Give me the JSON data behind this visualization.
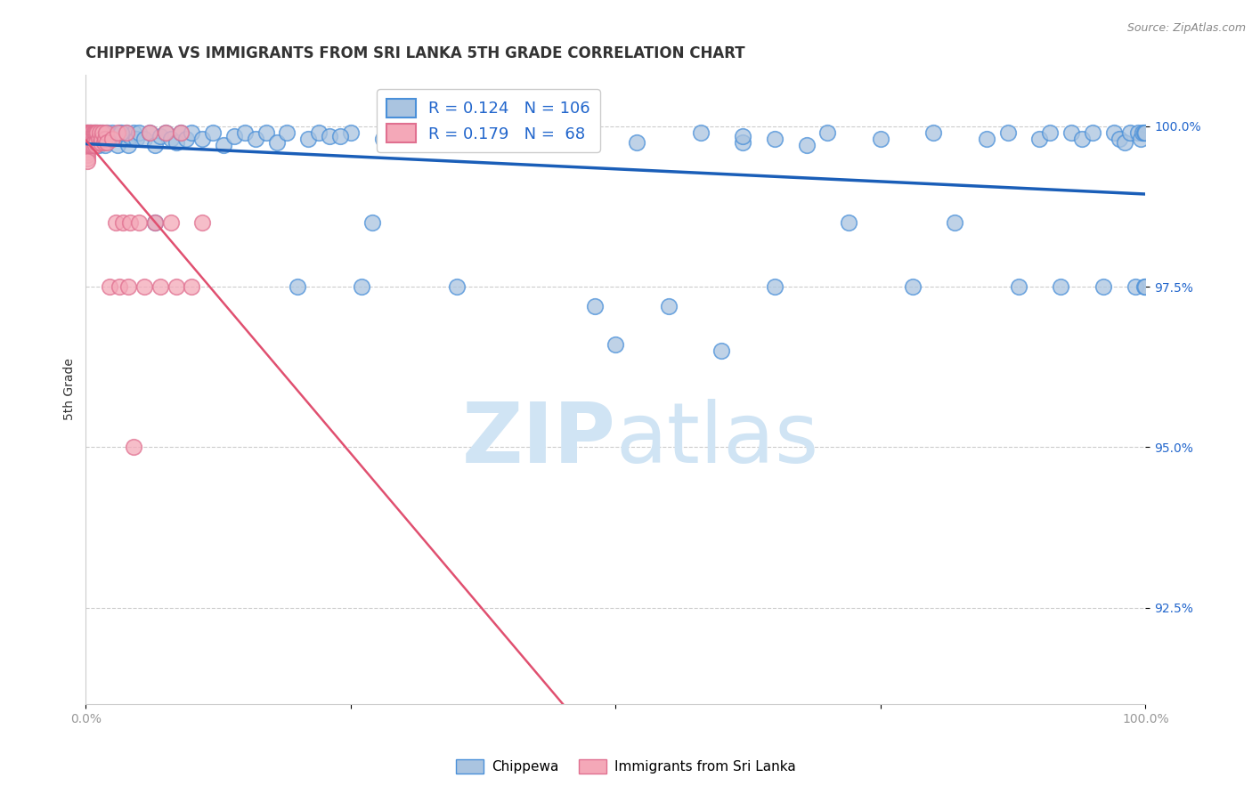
{
  "title": "CHIPPEWA VS IMMIGRANTS FROM SRI LANKA 5TH GRADE CORRELATION CHART",
  "source_text": "Source: ZipAtlas.com",
  "ylabel": "5th Grade",
  "xlim": [
    0.0,
    1.0
  ],
  "ylim": [
    0.91,
    1.008
  ],
  "yticks": [
    0.925,
    0.95,
    0.975,
    1.0
  ],
  "ytick_labels": [
    "92.5%",
    "95.0%",
    "97.5%",
    "100.0%"
  ],
  "blue_color": "#aac4e0",
  "blue_edge_color": "#4a90d9",
  "pink_color": "#f4a8b8",
  "pink_edge_color": "#e07090",
  "blue_line_color": "#1a5eb8",
  "pink_line_color": "#e05070",
  "watermark_color": "#d0e4f4",
  "grid_color": "#cccccc",
  "background_color": "#ffffff",
  "title_color": "#333333",
  "ytick_color": "#2266cc",
  "xtick_color": "#999999",
  "source_color": "#888888",
  "ylabel_color": "#333333",
  "title_fontsize": 12,
  "tick_fontsize": 10,
  "ylabel_fontsize": 10,
  "blue_scatter_x": [
    0.001,
    0.002,
    0.003,
    0.003,
    0.004,
    0.004,
    0.005,
    0.005,
    0.006,
    0.007,
    0.008,
    0.009,
    0.01,
    0.011,
    0.012,
    0.013,
    0.015,
    0.016,
    0.018,
    0.02,
    0.022,
    0.025,
    0.028,
    0.03,
    0.032,
    0.035,
    0.038,
    0.04,
    0.042,
    0.045,
    0.048,
    0.05,
    0.055,
    0.06,
    0.065,
    0.07,
    0.075,
    0.08,
    0.085,
    0.09,
    0.095,
    0.1,
    0.11,
    0.12,
    0.13,
    0.14,
    0.15,
    0.16,
    0.17,
    0.18,
    0.19,
    0.2,
    0.21,
    0.22,
    0.23,
    0.25,
    0.27,
    0.28,
    0.3,
    0.32,
    0.35,
    0.38,
    0.4,
    0.42,
    0.45,
    0.48,
    0.5,
    0.52,
    0.55,
    0.58,
    0.6,
    0.62,
    0.65,
    0.68,
    0.7,
    0.72,
    0.75,
    0.78,
    0.8,
    0.82,
    0.85,
    0.87,
    0.88,
    0.9,
    0.91,
    0.92,
    0.93,
    0.94,
    0.95,
    0.96,
    0.97,
    0.975,
    0.98,
    0.985,
    0.99,
    0.993,
    0.995,
    0.997,
    0.999,
    0.999,
    1.0,
    1.0,
    0.033,
    0.065,
    0.24,
    0.26,
    0.62,
    0.65
  ],
  "blue_scatter_y": [
    0.999,
    0.998,
    0.9985,
    0.997,
    0.999,
    0.998,
    0.999,
    0.9975,
    0.998,
    0.999,
    0.997,
    0.999,
    0.998,
    0.999,
    0.997,
    0.999,
    0.998,
    0.999,
    0.997,
    0.999,
    0.998,
    0.999,
    0.9985,
    0.997,
    0.999,
    0.998,
    0.999,
    0.997,
    0.9985,
    0.999,
    0.998,
    0.999,
    0.998,
    0.999,
    0.997,
    0.9985,
    0.999,
    0.998,
    0.9975,
    0.999,
    0.998,
    0.999,
    0.998,
    0.999,
    0.997,
    0.9985,
    0.999,
    0.998,
    0.999,
    0.9975,
    0.999,
    0.975,
    0.998,
    0.999,
    0.9985,
    0.999,
    0.985,
    0.998,
    0.999,
    0.9975,
    0.975,
    0.999,
    0.998,
    0.9975,
    0.999,
    0.972,
    0.966,
    0.9975,
    0.972,
    0.999,
    0.965,
    0.9975,
    0.998,
    0.997,
    0.999,
    0.985,
    0.998,
    0.975,
    0.999,
    0.985,
    0.998,
    0.999,
    0.975,
    0.998,
    0.999,
    0.975,
    0.999,
    0.998,
    0.999,
    0.975,
    0.999,
    0.998,
    0.9975,
    0.999,
    0.975,
    0.999,
    0.998,
    0.999,
    0.975,
    0.999,
    0.999,
    0.975,
    0.999,
    0.985,
    0.9985,
    0.975,
    0.9985,
    0.975
  ],
  "pink_scatter_x": [
    0.0005,
    0.001,
    0.001,
    0.001,
    0.001,
    0.001,
    0.001,
    0.001,
    0.001,
    0.001,
    0.001,
    0.0015,
    0.002,
    0.002,
    0.002,
    0.002,
    0.002,
    0.003,
    0.003,
    0.003,
    0.003,
    0.004,
    0.004,
    0.004,
    0.005,
    0.005,
    0.005,
    0.006,
    0.006,
    0.007,
    0.007,
    0.008,
    0.008,
    0.009,
    0.009,
    0.01,
    0.01,
    0.011,
    0.012,
    0.013,
    0.014,
    0.015,
    0.016,
    0.017,
    0.018,
    0.019,
    0.02,
    0.022,
    0.025,
    0.028,
    0.03,
    0.032,
    0.035,
    0.038,
    0.04,
    0.042,
    0.045,
    0.05,
    0.055,
    0.06,
    0.065,
    0.07,
    0.075,
    0.08,
    0.085,
    0.09,
    0.1,
    0.11
  ],
  "pink_scatter_y": [
    0.999,
    0.999,
    0.9985,
    0.998,
    0.9975,
    0.997,
    0.9965,
    0.996,
    0.9955,
    0.995,
    0.9945,
    0.999,
    0.999,
    0.9985,
    0.998,
    0.9975,
    0.997,
    0.999,
    0.9985,
    0.998,
    0.9975,
    0.999,
    0.9985,
    0.997,
    0.999,
    0.998,
    0.9975,
    0.999,
    0.997,
    0.999,
    0.997,
    0.999,
    0.9975,
    0.999,
    0.997,
    0.999,
    0.9975,
    0.999,
    0.998,
    0.999,
    0.9975,
    0.998,
    0.999,
    0.9975,
    0.998,
    0.999,
    0.9975,
    0.975,
    0.998,
    0.985,
    0.999,
    0.975,
    0.985,
    0.999,
    0.975,
    0.985,
    0.95,
    0.985,
    0.975,
    0.999,
    0.985,
    0.975,
    0.999,
    0.985,
    0.975,
    0.999,
    0.975,
    0.985
  ]
}
